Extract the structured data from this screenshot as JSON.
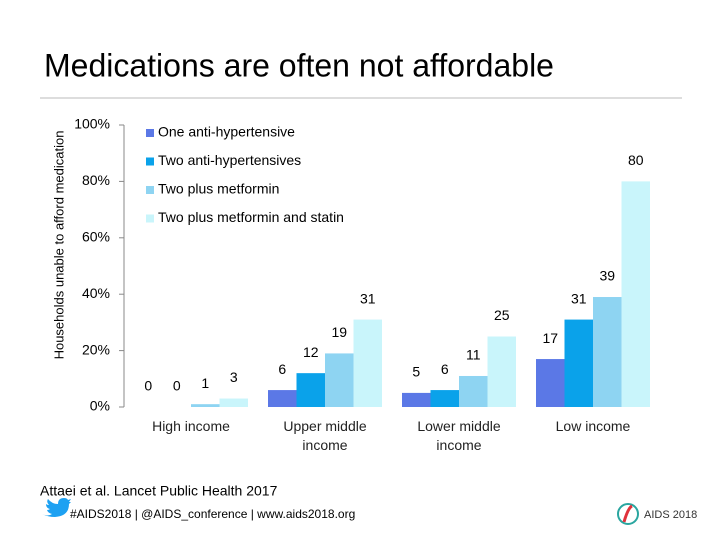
{
  "chart_data": {
    "type": "bar",
    "title": "Medications are often not affordable",
    "y_label": "Households unable to afford medication",
    "categories": [
      "High income",
      "Upper middle income",
      "Lower middle income",
      "Low income"
    ],
    "series": [
      {
        "name": "One anti-hypertensive",
        "color": "#5b78e6",
        "values": [
          0,
          6,
          5,
          17
        ]
      },
      {
        "name": "Two anti-hypertensives",
        "color": "#0aa2ea",
        "values": [
          0,
          12,
          6,
          31
        ]
      },
      {
        "name": "Two plus metformin",
        "color": "#8ed4f2",
        "values": [
          1,
          19,
          11,
          39
        ]
      },
      {
        "name": "Two plus metformin and statin",
        "color": "#c9f5fb",
        "values": [
          3,
          31,
          25,
          80
        ]
      }
    ],
    "ylim": [
      0,
      100
    ],
    "yticks": [
      {
        "value": 0,
        "label": "0%"
      },
      {
        "value": 20,
        "label": "20%"
      },
      {
        "value": 40,
        "label": "40%"
      },
      {
        "value": 60,
        "label": "60%"
      },
      {
        "value": 80,
        "label": "80%"
      },
      {
        "value": 100,
        "label": "100%"
      }
    ],
    "legend": "upper left",
    "grid": false
  },
  "footer": {
    "citation": "Attaei et al. Lancet Public Health 2017",
    "links": "#AIDS2018 | @AIDS_conference | www.aids2018.org",
    "logo_text": "AIDS 2018"
  }
}
